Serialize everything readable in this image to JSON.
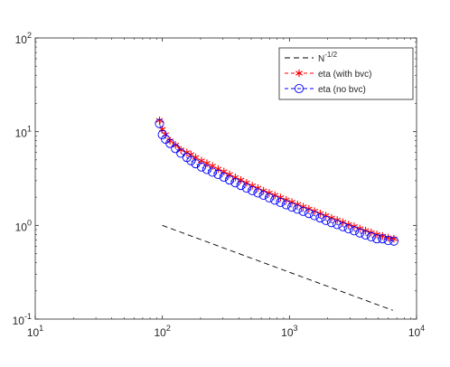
{
  "chart_data": {
    "type": "line",
    "title": "",
    "xlabel": "",
    "ylabel": "",
    "xscale": "log",
    "yscale": "log",
    "xlim": [
      10,
      10000
    ],
    "ylim": [
      0.1,
      100
    ],
    "grid": false,
    "legend_position": "top-right",
    "x_ticks": [
      {
        "base": "10",
        "exp": "1"
      },
      {
        "base": "10",
        "exp": "2"
      },
      {
        "base": "10",
        "exp": "3"
      },
      {
        "base": "10",
        "exp": "4"
      }
    ],
    "y_ticks": [
      {
        "base": "10",
        "exp": "-1"
      },
      {
        "base": "10",
        "exp": "0"
      },
      {
        "base": "10",
        "exp": "1"
      },
      {
        "base": "10",
        "exp": "2"
      }
    ],
    "series": [
      {
        "name_base": "N",
        "name_exp": "-1/2",
        "style": "dashed",
        "marker": "none",
        "color": "#000000",
        "x": [
          100,
          6500
        ],
        "y": [
          1.0,
          0.124
        ]
      },
      {
        "name": "eta (with bvc)",
        "style": "dashed",
        "marker": "asterisk",
        "color": "#ff0000",
        "x": [
          95,
          100,
          106,
          115,
          127,
          140,
          156,
          168,
          183,
          203,
          224,
          248,
          275,
          305,
          338,
          375,
          415,
          460,
          510,
          565,
          625,
          693,
          768,
          851,
          943,
          1045,
          1158,
          1283,
          1422,
          1576,
          1746,
          1935,
          2144,
          2376,
          2633,
          2917,
          3232,
          3582,
          3969,
          4398,
          4873,
          5400,
          5984,
          6630
        ],
        "y": [
          13.2,
          10.6,
          9.3,
          8.0,
          7.2,
          6.4,
          6.0,
          5.7,
          5.3,
          4.9,
          4.6,
          4.3,
          4.0,
          3.75,
          3.5,
          3.25,
          3.05,
          2.85,
          2.65,
          2.5,
          2.34,
          2.22,
          2.1,
          1.98,
          1.87,
          1.77,
          1.67,
          1.58,
          1.5,
          1.42,
          1.34,
          1.27,
          1.2,
          1.14,
          1.08,
          1.02,
          0.975,
          0.925,
          0.88,
          0.84,
          0.8,
          0.77,
          0.74,
          0.72
        ]
      },
      {
        "name": "eta (no bvc)",
        "style": "dashed",
        "marker": "circle",
        "color": "#0000ff",
        "x": [
          95,
          100,
          106,
          115,
          127,
          140,
          156,
          168,
          183,
          203,
          224,
          248,
          275,
          305,
          338,
          375,
          415,
          460,
          510,
          565,
          625,
          693,
          768,
          851,
          943,
          1045,
          1158,
          1283,
          1422,
          1576,
          1746,
          1935,
          2144,
          2376,
          2633,
          2917,
          3232,
          3582,
          3969,
          4398,
          4873,
          5400,
          5984,
          6630
        ],
        "y": [
          12.2,
          9.3,
          8.3,
          7.5,
          6.6,
          5.9,
          5.3,
          4.9,
          4.55,
          4.2,
          3.95,
          3.7,
          3.5,
          3.27,
          3.05,
          2.85,
          2.67,
          2.5,
          2.35,
          2.22,
          2.1,
          1.97,
          1.86,
          1.76,
          1.66,
          1.57,
          1.49,
          1.41,
          1.34,
          1.27,
          1.2,
          1.13,
          1.07,
          1.02,
          0.97,
          0.92,
          0.875,
          0.83,
          0.79,
          0.755,
          0.72,
          0.72,
          0.69,
          0.68
        ]
      }
    ]
  },
  "colors": {
    "axis": "#262626",
    "background": "#ffffff",
    "legend_border": "#262626"
  }
}
